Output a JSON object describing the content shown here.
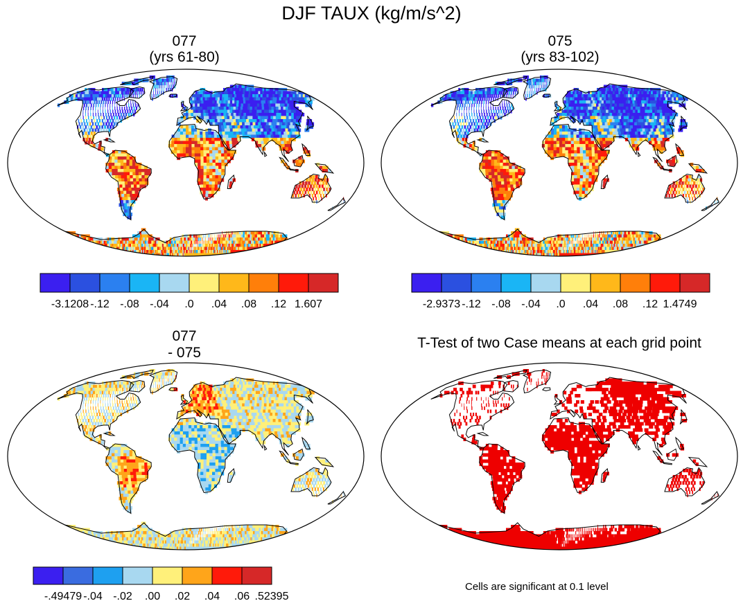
{
  "figure": {
    "title": "DJF TAUX (kg/m/s^2)"
  },
  "panels": [
    {
      "id": "p1",
      "title_line1": "077",
      "title_line2": "(yrs 61-80)",
      "mode": "field1",
      "colorbar": {
        "colors": [
          "#3b1ff0",
          "#2b50e0",
          "#2b80f0",
          "#1ab5f5",
          "#a8d8f0",
          "#fff07a",
          "#ffb81a",
          "#ff7f0a",
          "#ff1a0a",
          "#d62828"
        ],
        "labels": [
          "-3.1208",
          "-.12",
          "-.08",
          "-.04",
          ".0",
          ".04",
          ".08",
          ".12",
          "1.607"
        ]
      }
    },
    {
      "id": "p2",
      "title_line1": "075",
      "title_line2": "(yrs 83-102)",
      "mode": "field2",
      "colorbar": {
        "colors": [
          "#3b1ff0",
          "#2b50e0",
          "#2b80f0",
          "#1ab5f5",
          "#a8d8f0",
          "#fff07a",
          "#ffb81a",
          "#ff7f0a",
          "#ff1a0a",
          "#d62828"
        ],
        "labels": [
          "-2.9373",
          "-.12",
          "-.08",
          "-.04",
          ".0",
          ".04",
          ".08",
          ".12",
          "1.4749"
        ]
      }
    },
    {
      "id": "p3",
      "title_line1": "077",
      "title_line2": "- 075",
      "mode": "diff",
      "colorbar": {
        "colors": [
          "#3b1ff0",
          "#3a6ce0",
          "#1ea0f0",
          "#a8d8f0",
          "#fff07a",
          "#ffa51a",
          "#ff1a0a",
          "#d62828"
        ],
        "labels": [
          "-.49479",
          "-.04",
          "-.02",
          ".00",
          ".02",
          ".04",
          ".06",
          ".52395"
        ]
      }
    },
    {
      "id": "p4",
      "title_line1": "T-Test of two Case means at each grid point",
      "title_line2": "",
      "mode": "ttest",
      "note": "Cells are significant at 0.1 level",
      "significant_color": "#ee0000"
    }
  ]
}
